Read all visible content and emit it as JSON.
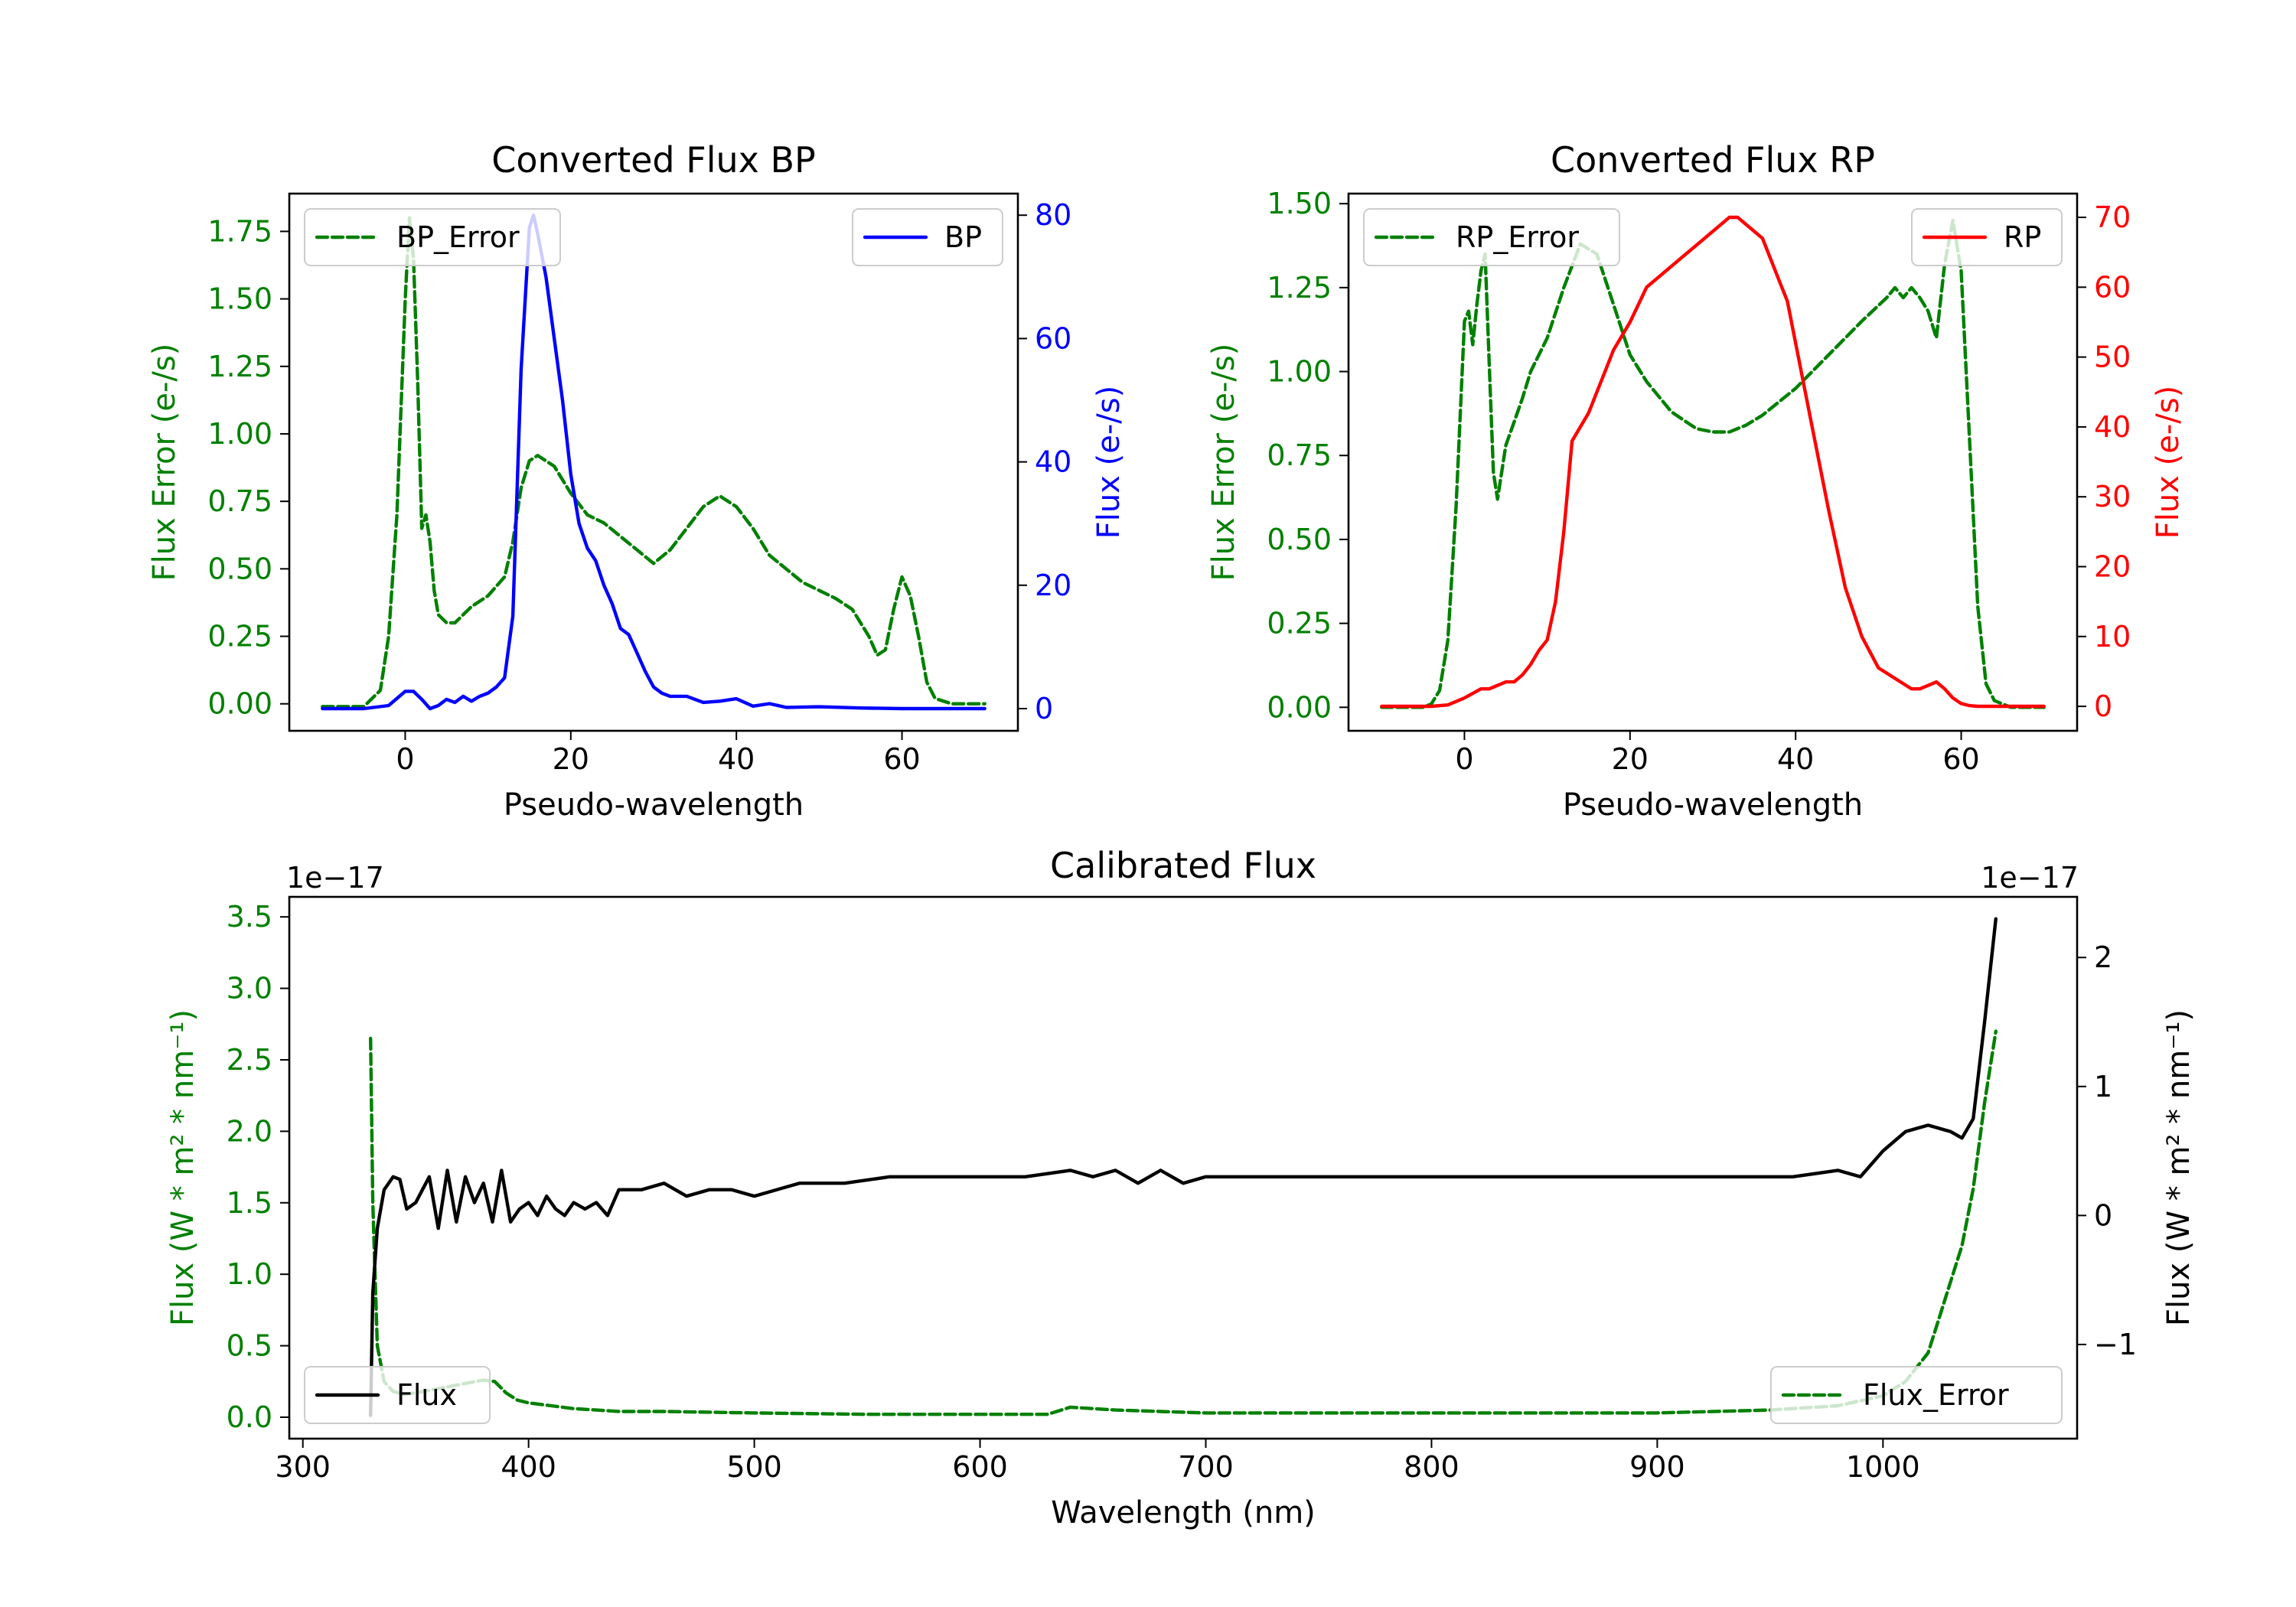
{
  "chart_data": [
    {
      "id": "bp",
      "type": "line",
      "title": "Converted Flux BP",
      "xlabel": "Pseudo-wavelength",
      "xlim": [
        -14,
        74
      ],
      "xticks": [
        0,
        20,
        40,
        60
      ],
      "left_axis": {
        "ylabel": "Flux Error (e-/s)",
        "ylim": [
          -0.1,
          1.89
        ],
        "ticks": [
          0.0,
          0.25,
          0.5,
          0.75,
          1.0,
          1.25,
          1.5,
          1.75
        ],
        "tick_labels": [
          "0.00",
          "0.25",
          "0.50",
          "0.75",
          "1.00",
          "1.25",
          "1.50",
          "1.75"
        ],
        "color": "#008000"
      },
      "right_axis": {
        "ylabel": "Flux (e-/s)",
        "ylim": [
          -3.6,
          83.5
        ],
        "ticks": [
          0,
          20,
          40,
          60,
          80
        ],
        "tick_labels": [
          "0",
          "20",
          "40",
          "60",
          "80"
        ],
        "color": "#0000ff"
      },
      "series": [
        {
          "name": "BP_Error",
          "axis": "left",
          "color": "#008000",
          "dash": "dashed",
          "legend": "upper-left",
          "x": [
            -10,
            -5,
            -3,
            -2,
            -1,
            0,
            0.5,
            1,
            1.5,
            2,
            2.5,
            3,
            3.5,
            4,
            5,
            6,
            8,
            10,
            12,
            13,
            14,
            15,
            16,
            18,
            20,
            22,
            24,
            26,
            28,
            30,
            32,
            34,
            36,
            38,
            40,
            42,
            44,
            46,
            48,
            50,
            52,
            54,
            56,
            57,
            58,
            59,
            60,
            61,
            62,
            63,
            64,
            66,
            68,
            70
          ],
          "y": [
            -0.01,
            -0.01,
            0.05,
            0.25,
            0.7,
            1.5,
            1.8,
            1.65,
            1.2,
            0.65,
            0.7,
            0.6,
            0.42,
            0.33,
            0.3,
            0.3,
            0.36,
            0.4,
            0.47,
            0.6,
            0.8,
            0.9,
            0.92,
            0.88,
            0.78,
            0.7,
            0.67,
            0.62,
            0.57,
            0.52,
            0.57,
            0.65,
            0.73,
            0.77,
            0.73,
            0.65,
            0.55,
            0.5,
            0.45,
            0.42,
            0.39,
            0.35,
            0.25,
            0.18,
            0.2,
            0.35,
            0.47,
            0.4,
            0.25,
            0.08,
            0.02,
            0.0,
            0.0,
            0.0
          ]
        },
        {
          "name": "BP",
          "axis": "right",
          "color": "#0000ff",
          "dash": "solid",
          "legend": "upper-right",
          "x": [
            -10,
            -5,
            -2,
            0,
            1,
            2,
            3,
            4,
            5,
            6,
            7,
            8,
            9,
            10,
            11,
            12,
            13,
            14,
            15,
            15.5,
            16,
            17,
            18,
            19,
            20,
            21,
            22,
            23,
            24,
            25,
            26,
            27,
            28,
            29,
            30,
            31,
            32,
            34,
            36,
            38,
            40,
            42,
            44,
            46,
            50,
            55,
            60,
            65,
            70
          ],
          "y": [
            0,
            0,
            0.5,
            2.8,
            2.8,
            1.5,
            0,
            0.5,
            1.5,
            1.0,
            2.0,
            1.2,
            2.0,
            2.5,
            3.5,
            5.0,
            15,
            55,
            78,
            80,
            77,
            70,
            60,
            50,
            38,
            30,
            26,
            24,
            20,
            17,
            13,
            12,
            9,
            6,
            3.5,
            2.5,
            2.0,
            2.0,
            1.0,
            1.2,
            1.6,
            0.4,
            0.8,
            0.2,
            0.3,
            0.1,
            0,
            0,
            0
          ]
        }
      ]
    },
    {
      "id": "rp",
      "type": "line",
      "title": "Converted Flux RP",
      "xlabel": "Pseudo-wavelength",
      "xlim": [
        -14,
        74
      ],
      "xticks": [
        0,
        20,
        40,
        60
      ],
      "left_axis": {
        "ylabel": "Flux Error (e-/s)",
        "ylim": [
          -0.07,
          1.53
        ],
        "ticks": [
          0.0,
          0.25,
          0.5,
          0.75,
          1.0,
          1.25,
          1.5
        ],
        "tick_labels": [
          "0.00",
          "0.25",
          "0.50",
          "0.75",
          "1.00",
          "1.25",
          "1.50"
        ],
        "color": "#008000"
      },
      "right_axis": {
        "ylabel": "Flux (e-/s)",
        "ylim": [
          -3.5,
          73.4
        ],
        "ticks": [
          0,
          10,
          20,
          30,
          40,
          50,
          60,
          70
        ],
        "tick_labels": [
          "0",
          "10",
          "20",
          "30",
          "40",
          "50",
          "60",
          "70"
        ],
        "color": "#ff0000"
      },
      "series": [
        {
          "name": "RP_Error",
          "axis": "left",
          "color": "#008000",
          "dash": "dashed",
          "legend": "upper-left",
          "x": [
            -10,
            -5,
            -4,
            -3,
            -2,
            -1,
            0,
            0.5,
            1,
            1.5,
            2,
            2.5,
            3,
            3.5,
            4,
            5,
            6,
            7,
            8,
            10,
            12,
            14,
            16,
            18,
            20,
            22,
            25,
            28,
            30,
            32,
            34,
            36,
            40,
            44,
            48,
            51,
            52,
            53,
            54,
            55,
            56,
            57,
            58,
            59,
            60,
            61,
            62,
            63,
            64,
            66,
            70
          ],
          "y": [
            0.0,
            0.0,
            0.01,
            0.05,
            0.2,
            0.6,
            1.15,
            1.18,
            1.08,
            1.2,
            1.3,
            1.35,
            1.02,
            0.7,
            0.62,
            0.78,
            0.85,
            0.92,
            1.0,
            1.1,
            1.25,
            1.38,
            1.35,
            1.2,
            1.05,
            0.97,
            0.88,
            0.83,
            0.82,
            0.82,
            0.84,
            0.87,
            0.95,
            1.05,
            1.15,
            1.22,
            1.25,
            1.22,
            1.25,
            1.22,
            1.18,
            1.1,
            1.32,
            1.45,
            1.3,
            0.8,
            0.3,
            0.07,
            0.02,
            0.0,
            0.0
          ]
        },
        {
          "name": "RP",
          "axis": "right",
          "color": "#ff0000",
          "dash": "solid",
          "legend": "upper-right",
          "x": [
            -10,
            -4,
            -2,
            0,
            2,
            3,
            4,
            5,
            6,
            7,
            8,
            9,
            10,
            11,
            12,
            13,
            14,
            15,
            16,
            17,
            18,
            19,
            20,
            22,
            24,
            26,
            28,
            30,
            31,
            32,
            33,
            34,
            35,
            36,
            37,
            38,
            39,
            40,
            42,
            44,
            46,
            48,
            50,
            52,
            54,
            55,
            56,
            57,
            58,
            59,
            60,
            61,
            62,
            64,
            70
          ],
          "y": [
            0,
            0,
            0.2,
            1.2,
            2.5,
            2.5,
            3.0,
            3.5,
            3.5,
            4.5,
            6,
            8,
            9.5,
            15,
            25,
            38,
            40,
            42,
            45,
            48,
            51,
            53,
            55,
            60,
            62,
            64,
            66,
            68,
            69,
            70,
            70,
            69,
            68,
            67,
            64,
            61,
            58,
            52,
            40,
            28,
            17,
            10,
            5.5,
            4.0,
            2.5,
            2.5,
            3.0,
            3.5,
            2.5,
            1.2,
            0.4,
            0.1,
            0,
            0,
            0
          ]
        }
      ]
    },
    {
      "id": "calibrated",
      "type": "line",
      "title": "Calibrated Flux",
      "xlabel": "Wavelength (nm)",
      "xlim": [
        294,
        1086
      ],
      "xticks": [
        300,
        400,
        500,
        600,
        700,
        800,
        900,
        1000
      ],
      "left_axis": {
        "ylabel": "Flux (W * m² * nm⁻¹)",
        "offset_label": "1e−17",
        "ylim": [
          -0.15,
          3.64
        ],
        "ticks": [
          0.0,
          0.5,
          1.0,
          1.5,
          2.0,
          2.5,
          3.0,
          3.5
        ],
        "tick_labels": [
          "0.0",
          "0.5",
          "1.0",
          "1.5",
          "2.0",
          "2.5",
          "3.0",
          "3.5"
        ],
        "color": "#008000"
      },
      "right_axis": {
        "ylabel": "Flux (W * m² * nm⁻¹)",
        "offset_label": "1e−17",
        "ylim": [
          -1.73,
          2.47
        ],
        "ticks": [
          -1,
          0,
          1,
          2
        ],
        "tick_labels": [
          "−1",
          "0",
          "1",
          "2"
        ],
        "color": "#000000"
      },
      "series": [
        {
          "name": "Flux_Error",
          "axis": "left",
          "color": "#008000",
          "dash": "dashed",
          "legend": "lower-right",
          "x": [
            330,
            331,
            333,
            336,
            340,
            345,
            350,
            360,
            370,
            380,
            385,
            390,
            395,
            400,
            410,
            420,
            430,
            440,
            460,
            500,
            550,
            600,
            630,
            640,
            660,
            700,
            800,
            900,
            950,
            980,
            1000,
            1010,
            1020,
            1025,
            1030,
            1035,
            1040,
            1045,
            1050
          ],
          "y": [
            2.65,
            1.5,
            0.5,
            0.25,
            0.18,
            0.16,
            0.17,
            0.2,
            0.23,
            0.26,
            0.25,
            0.17,
            0.12,
            0.1,
            0.08,
            0.06,
            0.05,
            0.04,
            0.04,
            0.03,
            0.02,
            0.02,
            0.02,
            0.07,
            0.05,
            0.03,
            0.03,
            0.03,
            0.05,
            0.08,
            0.15,
            0.25,
            0.45,
            0.7,
            0.95,
            1.2,
            1.6,
            2.2,
            2.7
          ]
        },
        {
          "name": "Flux",
          "axis": "right",
          "color": "#000000",
          "dash": "solid",
          "legend": "lower-left",
          "x": [
            330,
            331,
            333,
            336,
            340,
            343,
            346,
            350,
            353,
            356,
            360,
            364,
            368,
            372,
            376,
            380,
            384,
            388,
            392,
            396,
            400,
            404,
            408,
            412,
            416,
            420,
            425,
            430,
            435,
            440,
            450,
            460,
            470,
            480,
            490,
            500,
            520,
            540,
            560,
            580,
            600,
            620,
            640,
            650,
            660,
            670,
            680,
            690,
            700,
            720,
            740,
            760,
            780,
            800,
            820,
            840,
            860,
            880,
            900,
            920,
            940,
            960,
            980,
            990,
            1000,
            1010,
            1020,
            1030,
            1035,
            1040,
            1045,
            1050
          ],
          "y": [
            -1.55,
            -0.6,
            -0.1,
            0.2,
            0.3,
            0.28,
            0.05,
            0.1,
            0.2,
            0.3,
            -0.1,
            0.35,
            -0.05,
            0.3,
            0.1,
            0.25,
            -0.05,
            0.35,
            -0.05,
            0.05,
            0.1,
            0.0,
            0.15,
            0.05,
            0.0,
            0.1,
            0.05,
            0.1,
            0.0,
            0.2,
            0.2,
            0.25,
            0.15,
            0.2,
            0.2,
            0.15,
            0.25,
            0.25,
            0.3,
            0.3,
            0.3,
            0.3,
            0.35,
            0.3,
            0.35,
            0.25,
            0.35,
            0.25,
            0.3,
            0.3,
            0.3,
            0.3,
            0.3,
            0.3,
            0.3,
            0.3,
            0.3,
            0.3,
            0.3,
            0.3,
            0.3,
            0.3,
            0.35,
            0.3,
            0.5,
            0.65,
            0.7,
            0.65,
            0.6,
            0.75,
            1.5,
            2.3
          ]
        }
      ]
    }
  ]
}
